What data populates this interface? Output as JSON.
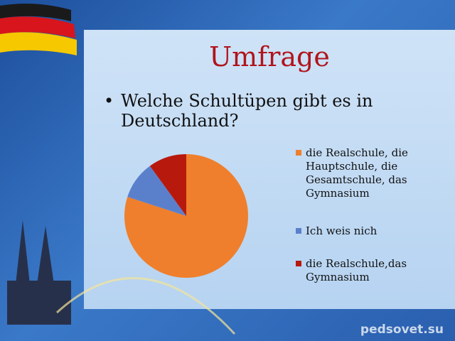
{
  "slide": {
    "title": "Umfrage",
    "bullet": "Welche Schultüpen gibt es in Deutschland?"
  },
  "chart_data": {
    "type": "pie",
    "categories": [
      "die Realschule, die Hauptschule, die Gesamtschule, das Gymnasium",
      "Ich weis nich",
      "die Realschule,das Gymnasium"
    ],
    "values": [
      80,
      10,
      10
    ],
    "colors": [
      "#ef7f2c",
      "#5b80cb",
      "#b8190d"
    ]
  },
  "watermark": "pedsovet.su"
}
